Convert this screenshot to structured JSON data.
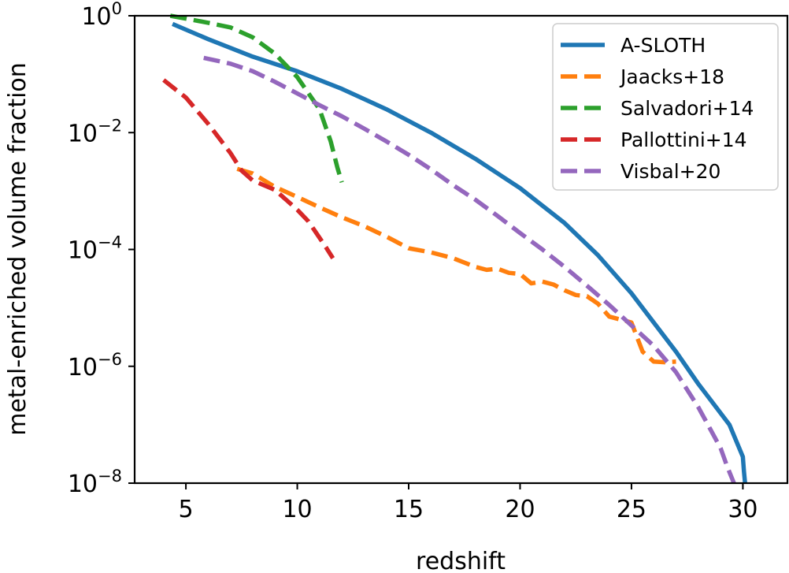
{
  "chart_data": {
    "type": "line",
    "title": "",
    "xlabel": "redshift",
    "ylabel": "metal-enriched volume fraction",
    "xlim": [
      2.7,
      32.0
    ],
    "ylim_log10": [
      -8,
      0
    ],
    "yscale": "log",
    "x_ticks": [
      5,
      10,
      15,
      20,
      25,
      30
    ],
    "y_ticks": [
      {
        "exp": 0,
        "base": "10",
        "sup": "0"
      },
      {
        "exp": -2,
        "base": "10",
        "sup": "−2"
      },
      {
        "exp": -4,
        "base": "10",
        "sup": "−4"
      },
      {
        "exp": -6,
        "base": "10",
        "sup": "−6"
      },
      {
        "exp": -8,
        "base": "10",
        "sup": "−8"
      }
    ],
    "legend_position": "top-right",
    "series": [
      {
        "name": "A-SLOTH",
        "color": "#1f77b4",
        "style": "solid",
        "x": [
          4.4,
          6,
          8,
          10,
          12,
          14,
          16,
          18,
          20,
          22,
          23.5,
          25,
          26,
          27,
          28,
          28.7,
          29.4,
          30.0,
          30.05,
          30.1
        ],
        "log10_y": [
          -0.14,
          -0.4,
          -0.7,
          -0.95,
          -1.25,
          -1.6,
          -2.0,
          -2.45,
          -2.95,
          -3.55,
          -4.1,
          -4.75,
          -5.25,
          -5.75,
          -6.3,
          -6.65,
          -7.0,
          -7.55,
          -7.8,
          -8.0
        ]
      },
      {
        "name": "Jaacks+18",
        "color": "#ff7f0e",
        "style": "dashed",
        "x": [
          7.3,
          8,
          9,
          10,
          11,
          12,
          13,
          14,
          15,
          16,
          17,
          18,
          18.5,
          19,
          19.5,
          20,
          20.5,
          21,
          21.5,
          22,
          22.5,
          23,
          23.5,
          24,
          24.5,
          25,
          25.5,
          26,
          26.5,
          27
        ],
        "log10_y": [
          -2.62,
          -2.7,
          -2.93,
          -3.1,
          -3.28,
          -3.45,
          -3.6,
          -3.78,
          -3.98,
          -4.05,
          -4.15,
          -4.3,
          -4.35,
          -4.33,
          -4.4,
          -4.42,
          -4.58,
          -4.55,
          -4.6,
          -4.7,
          -4.78,
          -4.8,
          -4.93,
          -5.15,
          -5.2,
          -5.25,
          -5.75,
          -5.92,
          -5.93,
          -5.92
        ]
      },
      {
        "name": "Salvadori+14",
        "color": "#2ca02c",
        "style": "dashed",
        "x": [
          4.3,
          6,
          7,
          8,
          9,
          10,
          11,
          11.5,
          11.8,
          12.0
        ],
        "log10_y": [
          0.0,
          -0.12,
          -0.2,
          -0.37,
          -0.65,
          -1.05,
          -1.6,
          -2.15,
          -2.6,
          -2.85
        ]
      },
      {
        "name": "Pallottini+14",
        "color": "#d62728",
        "style": "dashed",
        "x": [
          4.0,
          4.5,
          5,
          6,
          7,
          7.5,
          8,
          8.5,
          9,
          9.5,
          10,
          10.5,
          11,
          11.3,
          11.6
        ],
        "log10_y": [
          -1.1,
          -1.25,
          -1.4,
          -1.85,
          -2.35,
          -2.65,
          -2.82,
          -2.9,
          -2.98,
          -3.15,
          -3.32,
          -3.52,
          -3.8,
          -3.97,
          -4.15
        ]
      },
      {
        "name": "Visbal+20",
        "color": "#9467bd",
        "style": "dashed",
        "x": [
          5.8,
          7,
          8,
          9,
          10,
          11,
          12,
          13,
          14,
          15,
          16,
          17,
          18,
          19,
          20,
          21,
          22,
          23,
          24,
          25,
          26,
          27,
          28,
          28.5,
          29,
          29.3,
          29.6
        ],
        "log10_y": [
          -0.72,
          -0.82,
          -0.95,
          -1.13,
          -1.33,
          -1.53,
          -1.72,
          -1.93,
          -2.15,
          -2.38,
          -2.63,
          -2.9,
          -3.15,
          -3.43,
          -3.72,
          -4.0,
          -4.3,
          -4.62,
          -4.95,
          -5.3,
          -5.65,
          -6.1,
          -6.7,
          -7.05,
          -7.4,
          -7.72,
          -8.0
        ]
      }
    ]
  }
}
